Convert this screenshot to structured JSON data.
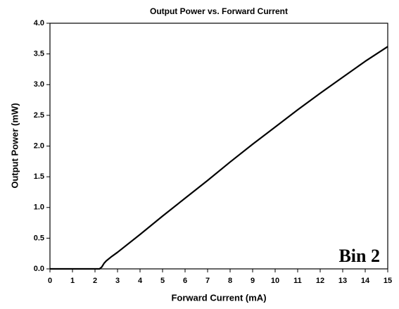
{
  "chart_data": {
    "type": "line",
    "title": "Output Power  vs. Forward Current",
    "xlabel": "Forward Current (mA)",
    "ylabel": "Output Power (mW)",
    "annotation": "Bin 2",
    "x": [
      0,
      1,
      2,
      2.2,
      2.3,
      2.4,
      2.5,
      2.7,
      3,
      4,
      5,
      6,
      7,
      8,
      9,
      10,
      11,
      12,
      13,
      14,
      15
    ],
    "values": [
      0,
      0,
      0,
      0,
      0.03,
      0.09,
      0.13,
      0.19,
      0.27,
      0.56,
      0.86,
      1.15,
      1.44,
      1.74,
      2.03,
      2.31,
      2.59,
      2.86,
      3.12,
      3.38,
      3.62
    ],
    "color": "#000000",
    "xlim": [
      0,
      15
    ],
    "xticks": [
      0,
      1,
      2,
      3,
      4,
      5,
      6,
      7,
      8,
      9,
      10,
      11,
      12,
      13,
      14,
      15
    ],
    "ylim": [
      0,
      4
    ],
    "yticks": [
      {
        "value": 0,
        "label": "0.0"
      },
      0.5,
      {
        "value": 1,
        "label": "1.0"
      },
      1.5,
      {
        "value": 2,
        "label": "2.0"
      },
      2.5,
      {
        "value": 3,
        "label": "3.0"
      },
      3.5,
      {
        "value": 4,
        "label": "4.0"
      }
    ]
  }
}
